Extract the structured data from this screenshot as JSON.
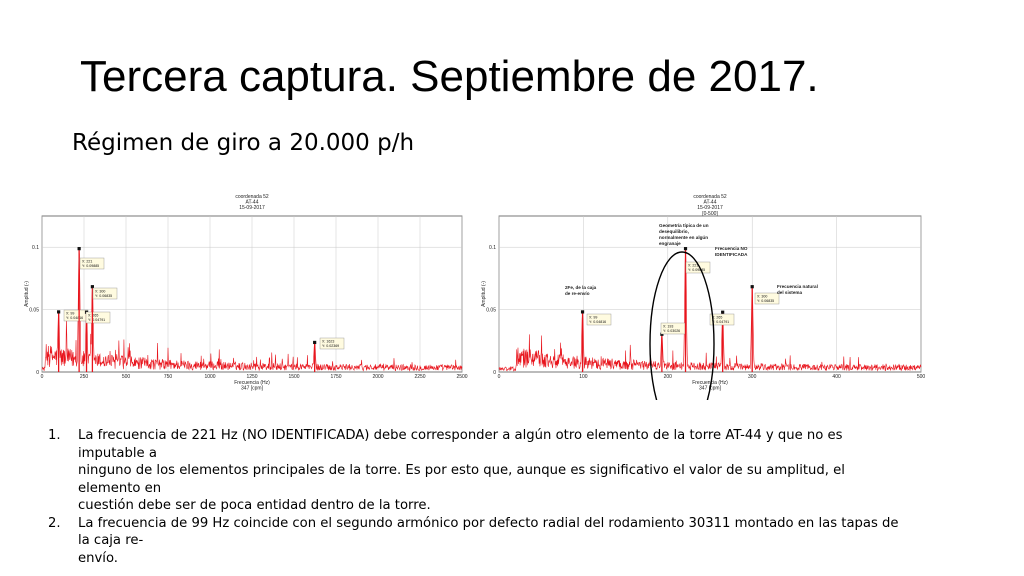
{
  "slide": {
    "title": "Tercera captura. Septiembre de 2017.",
    "subtitle": "Régimen de giro a 20.000 p/h"
  },
  "chart_data": [
    {
      "type": "line",
      "title": [
        "coordenada 52",
        "AT-44",
        "15-09-2017"
      ],
      "xlabel": [
        "Frecuencia (Hz)",
        "347 [cpm]"
      ],
      "ylabel": "Amplitud (-)",
      "xlim": [
        0,
        2500
      ],
      "ylim": [
        0,
        0.125
      ],
      "xticks": [
        0,
        250,
        500,
        750,
        1000,
        1250,
        1500,
        1750,
        2000,
        2250,
        2500
      ],
      "yticks": [
        0,
        0.05,
        0.1
      ],
      "ytick_labels": [
        "0",
        "0.05",
        "0.1"
      ],
      "grid": true,
      "color": "#e8141c",
      "peaks": [
        {
          "x": 99,
          "y": 0.04816,
          "label": [
            "X: 99",
            "Y: 0.04816"
          ]
        },
        {
          "x": 221,
          "y": 0.09885,
          "label": [
            "X: 221",
            "Y: 0.09885"
          ]
        },
        {
          "x": 265,
          "y": 0.04791,
          "label": [
            "X: 265",
            "Y: 0.04791"
          ]
        },
        {
          "x": 300,
          "y": 0.06835,
          "label": [
            "X: 300",
            "Y: 0.06835"
          ]
        },
        {
          "x": 1623,
          "y": 0.02369,
          "label": [
            "X: 1623",
            "Y: 0.02369"
          ]
        }
      ]
    },
    {
      "type": "line",
      "title": [
        "coordenada 52",
        "AT-44",
        "15-09-2017",
        "[0-500]"
      ],
      "xlabel": [
        "Frecuencia (Hz)",
        "347 [cpm]"
      ],
      "ylabel": "Amplitud (-)",
      "xlim": [
        0,
        500
      ],
      "ylim": [
        0,
        0.125
      ],
      "xticks": [
        0,
        100,
        200,
        300,
        400,
        500
      ],
      "yticks": [
        0,
        0.05,
        0.1
      ],
      "ytick_labels": [
        "0",
        "0.05",
        "0.1"
      ],
      "grid": true,
      "color": "#e8141c",
      "peaks": [
        {
          "x": 99,
          "y": 0.04816,
          "label": [
            "X: 99",
            "Y: 0.04816"
          ]
        },
        {
          "x": 193,
          "y": 0.03026,
          "label": [
            "X: 193",
            "Y: 0.03026"
          ]
        },
        {
          "x": 221,
          "y": 0.09885,
          "label": [
            "X: 221",
            "Y: 0.09885"
          ]
        },
        {
          "x": 265,
          "y": 0.04791,
          "label": [
            "X: 265",
            "Y: 0.04791"
          ]
        },
        {
          "x": 300,
          "y": 0.06835,
          "label": [
            "X: 300",
            "Y: 0.06835"
          ]
        }
      ],
      "annotations": [
        {
          "text": [
            "2Fe, de la caja",
            "de re-envío"
          ]
        },
        {
          "text": [
            "Geometría típica de un",
            "desequilibrio,",
            "normalmente en algún",
            "engranaje"
          ]
        },
        {
          "text": [
            "Frecuencia NO",
            "IDENTIFICADA"
          ]
        },
        {
          "text": [
            "Frecuencia natural",
            "del sistema"
          ]
        }
      ]
    }
  ],
  "notes": [
    {
      "num": "1.",
      "lines": [
        "La frecuencia de 221 Hz (NO IDENTIFICADA) debe corresponder a algún otro elemento de la torre AT-44 y que no es imputable a",
        "ninguno de los elementos principales de la torre. Es por esto que, aunque es significativo el valor de su amplitud, el elemento en",
        "cuestión debe ser de poca entidad dentro de la torre."
      ]
    },
    {
      "num": "2.",
      "lines": [
        "La frecuencia de 99 Hz coincide con el segundo armónico por defecto radial del rodamiento 30311 montado en las tapas de la caja re-",
        "envío."
      ]
    }
  ]
}
